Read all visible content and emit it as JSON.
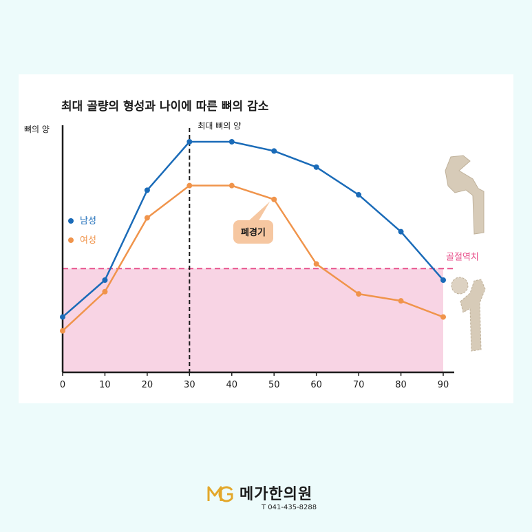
{
  "chart_data": {
    "type": "line",
    "title": "최대 골량의 형성과 나이에 따른 뼈의 감소",
    "ylabel": "뼈의 양",
    "xlabel": "",
    "x": [
      0,
      10,
      20,
      30,
      40,
      50,
      60,
      70,
      80,
      90
    ],
    "xlim": [
      0,
      90
    ],
    "ylim": [
      0,
      100
    ],
    "series": [
      {
        "name": "남성",
        "color": "#1a6bb8",
        "values": [
          24,
          40,
          79,
          100,
          100,
          96,
          89,
          77,
          61,
          40
        ]
      },
      {
        "name": "여성",
        "color": "#f0944b",
        "values": [
          18,
          35,
          67,
          81,
          81,
          75,
          47,
          34,
          31,
          24
        ]
      }
    ],
    "legend_position": "left",
    "annotations": {
      "peak_label": "최대 뼈의 양",
      "peak_x": 30,
      "menopause_label": "폐경기",
      "menopause_x": 50,
      "threshold_label": "골절역치",
      "threshold_y": 45
    },
    "colors": {
      "fracture_zone": "#f8d4e4",
      "threshold_line": "#e8528c",
      "menopause_box": "#f6c7a1"
    },
    "icons": [
      "healthy-femur-icon",
      "osteoporotic-femur-icon"
    ]
  },
  "brand": {
    "name": "메가한의원",
    "phone": "T 041-435-8288",
    "logo": "mg-logo-icon",
    "color": "#e3a72a"
  }
}
